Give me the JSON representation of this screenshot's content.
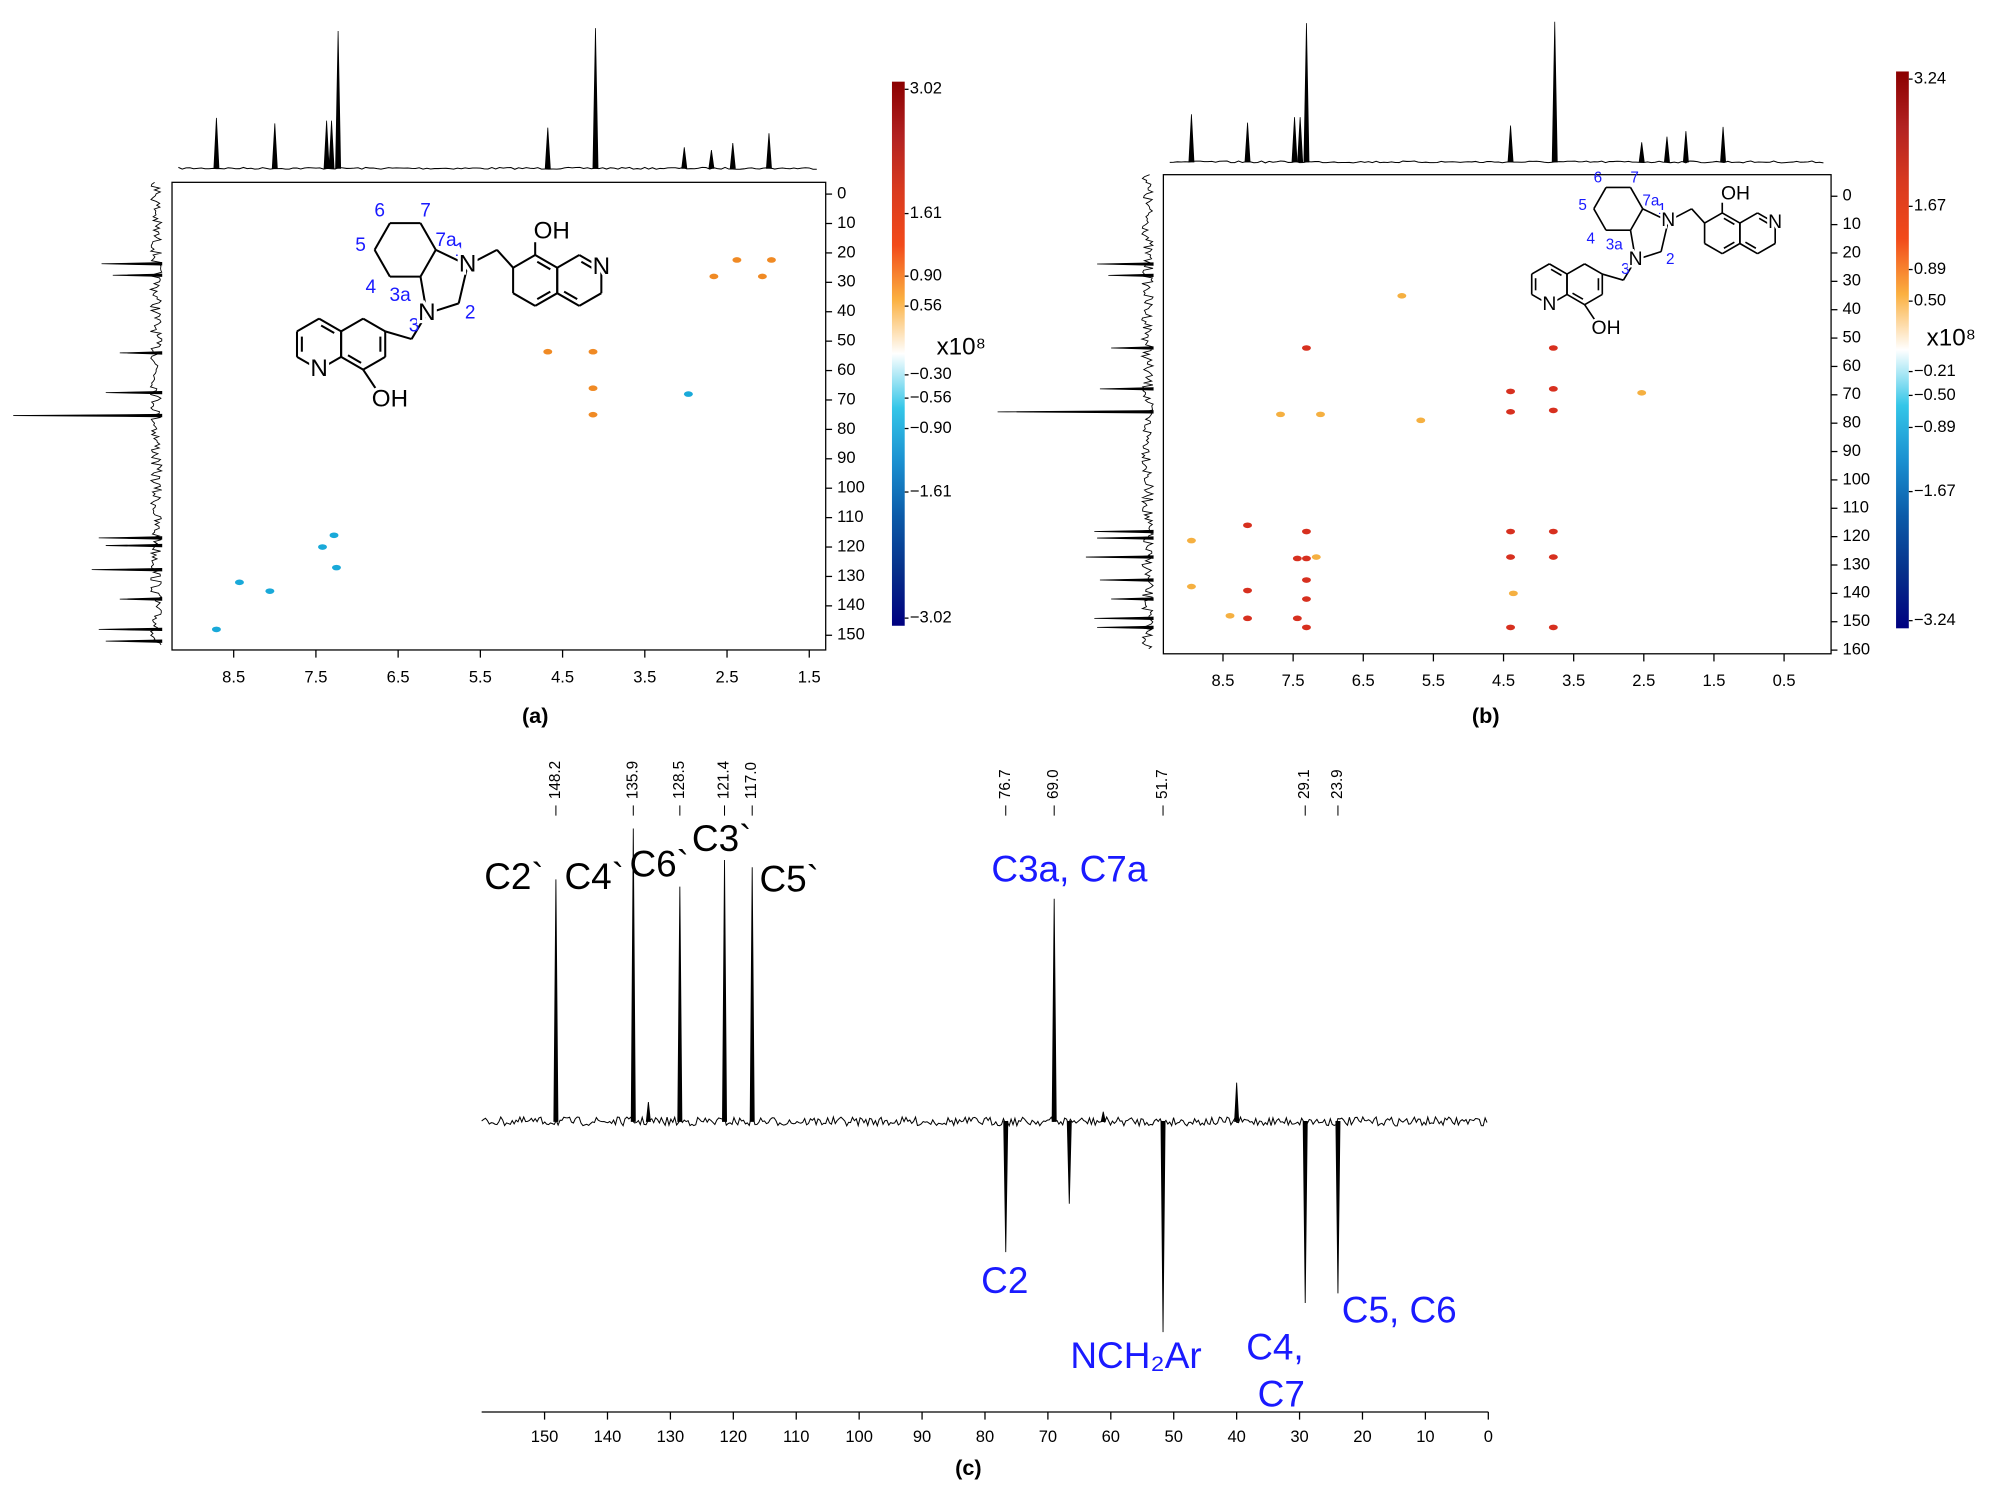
{
  "chart_data": [
    {
      "type": "hsqc",
      "panel_label": "(a)",
      "xlim": [
        9.25,
        1.3
      ],
      "xticks": [
        8.5,
        7.5,
        6.5,
        5.5,
        4.5,
        3.5,
        2.5,
        1.5
      ],
      "ylim": [
        -4,
        155
      ],
      "yticks": [
        0,
        10,
        20,
        30,
        40,
        50,
        60,
        70,
        80,
        90,
        100,
        110,
        120,
        130,
        140,
        150
      ],
      "colorbar": {
        "ticks": [
          3.02,
          1.61,
          {
            "value": 0.9,
            "label": "0.90"
          },
          0.56,
          {
            "value": -0.3,
            "label": "−0.30"
          },
          {
            "value": -0.56,
            "label": "−0.56"
          },
          {
            "value": -0.9,
            "label": "−0.90"
          },
          {
            "value": -1.61,
            "label": "−1.61"
          },
          {
            "value": -3.02,
            "label": "−3.02"
          }
        ],
        "unit": "x10⁸",
        "colors": [
          "#8b0000",
          "#b22222",
          "#d93a1f",
          "#f24a1a",
          "#fbb040",
          "#ffffff",
          "#34c6e8",
          "#1a8fd0",
          "#0b5aa8",
          "#06308a",
          "#000080"
        ]
      },
      "projection_top": {
        "x": [
          8.71,
          8.0,
          7.37,
          7.31,
          7.23,
          4.68,
          4.1,
          3.02,
          2.69,
          2.43,
          1.99
        ],
        "values": [
          36,
          32,
          34,
          34,
          98,
          29,
          100,
          15,
          13,
          18,
          25
        ]
      },
      "projection_left": {
        "y": [
          23.7,
          27.6,
          54,
          67.5,
          75.3,
          116.9,
          119.5,
          127.7,
          137.7,
          148,
          152
        ],
        "values": [
          43,
          35,
          30,
          40,
          106,
          45,
          40,
          50,
          30,
          45,
          40
        ]
      },
      "peaks": [
        {
          "color": "#f08a24",
          "x": [
            4.68,
            4.13,
            4.13,
            4.13,
            2.66,
            2.38,
            2.07,
            1.96
          ],
          "y": [
            53.6,
            53.6,
            66,
            75,
            28,
            22.4,
            28,
            22.4
          ]
        },
        {
          "color": "#19a9d9",
          "x": [
            2.97,
            7.28,
            7.42,
            7.25,
            8.06,
            8.43,
            8.71
          ],
          "y": [
            68,
            116,
            120,
            127,
            135,
            132,
            148
          ]
        }
      ],
      "structure": {
        "numbering": [
          "6",
          "7",
          "5",
          "7a",
          "1",
          "4",
          "3a",
          "3",
          "2"
        ],
        "atoms": [
          "N",
          "N",
          "OH",
          "N",
          "OH",
          "N"
        ]
      }
    },
    {
      "type": "hsqc",
      "panel_label": "(b)",
      "xlim": [
        9.35,
        -0.17
      ],
      "xticks": [
        8.5,
        7.5,
        6.5,
        5.5,
        4.5,
        3.5,
        2.5,
        1.5,
        0.5
      ],
      "ylim": [
        -7.6,
        161.3
      ],
      "yticks": [
        0,
        10,
        20,
        30,
        40,
        50,
        60,
        70,
        80,
        90,
        100,
        110,
        120,
        130,
        140,
        150,
        160
      ],
      "colorbar": {
        "ticks": [
          3.24,
          1.67,
          0.89,
          {
            "value": 0.5,
            "label": "0.50"
          },
          {
            "value": -0.21,
            "label": "−0.21"
          },
          {
            "value": -0.5,
            "label": "−0.50"
          },
          {
            "value": -0.89,
            "label": "−0.89"
          },
          {
            "value": -1.67,
            "label": "−1.67"
          },
          {
            "value": -3.24,
            "label": "−3.24"
          }
        ],
        "unit": "x10⁸",
        "colors": [
          "#8b0000",
          "#b22222",
          "#d93a1f",
          "#f24a1a",
          "#fbb040",
          "#ffffff",
          "#34c6e8",
          "#1a8fd0",
          "#0b5aa8",
          "#06308a",
          "#000080"
        ]
      },
      "projection_top": {
        "x": [
          8.95,
          8.15,
          7.48,
          7.4,
          7.31,
          4.4,
          3.77,
          2.53,
          2.17,
          1.9,
          1.37
        ],
        "values": [
          34,
          28,
          32,
          32,
          99,
          26,
          100,
          14,
          18,
          22,
          25
        ]
      },
      "projection_left": {
        "y": [
          23.9,
          27.9,
          53.5,
          67.9,
          76,
          118.2,
          120.5,
          127.2,
          135.3,
          142,
          148.8,
          152
        ],
        "values": [
          40,
          32,
          30,
          38,
          111,
          42,
          40,
          48,
          38,
          30,
          42,
          40
        ]
      },
      "peaks": [
        {
          "color": "#d7301f",
          "x": [
            7.31,
            3.79,
            4.4,
            3.79,
            4.4,
            3.79,
            7.31,
            4.4,
            3.79,
            7.44,
            7.31,
            4.4,
            3.79,
            7.31,
            7.31,
            8.15,
            8.15,
            7.44,
            7.31,
            4.4,
            3.79,
            8.15
          ],
          "y": [
            53.5,
            53.5,
            68.8,
            67.9,
            76,
            75.5,
            118.2,
            118.2,
            118.2,
            127.7,
            127.7,
            127.2,
            127.2,
            135.3,
            142,
            139,
            148.8,
            148.8,
            152,
            152,
            152,
            116
          ]
        },
        {
          "color": "#f5b041",
          "x": [
            5.95,
            2.53,
            7.68,
            7.11,
            5.68,
            8.95,
            8.95,
            8.4,
            7.17,
            4.36
          ],
          "y": [
            35.1,
            69.3,
            76.9,
            76.9,
            79,
            121.4,
            137.6,
            147.9,
            127.2,
            140
          ]
        }
      ],
      "structure": {
        "numbering": [
          "6",
          "7",
          "5",
          "7a",
          "1",
          "4",
          "3a",
          "3",
          "2"
        ],
        "atoms": [
          "N",
          "N",
          "OH",
          "N",
          "OH",
          "N"
        ]
      }
    },
    {
      "type": "spectrum",
      "panel_label": "(c)",
      "xlim": [
        160,
        0
      ],
      "xticks": [
        150,
        140,
        130,
        120,
        110,
        100,
        90,
        80,
        70,
        60,
        50,
        40,
        30,
        20,
        10,
        0
      ],
      "peaks": {
        "x": [
          148.2,
          135.9,
          128.5,
          121.4,
          {
            "value": 117,
            "label": "117.0"
          },
          76.7,
          {
            "value": 69,
            "label": "69.0"
          },
          51.7,
          29.1,
          23.9
        ],
        "values": [
          100,
          121,
          97,
          108,
          105,
          -54,
          92,
          -87,
          -75,
          -71
        ]
      },
      "minor_peaks": {
        "x": [
          133.5,
          66.6,
          61.2,
          40.0
        ],
        "values": [
          8,
          -34,
          4,
          16
        ]
      },
      "assignments": [
        "C2`",
        "C4`",
        "C6`",
        "C3`",
        "C5`",
        "C3a, C7a",
        "C2",
        "NCH₂Ar",
        "C4,",
        "C7",
        "C5, C6"
      ]
    }
  ]
}
